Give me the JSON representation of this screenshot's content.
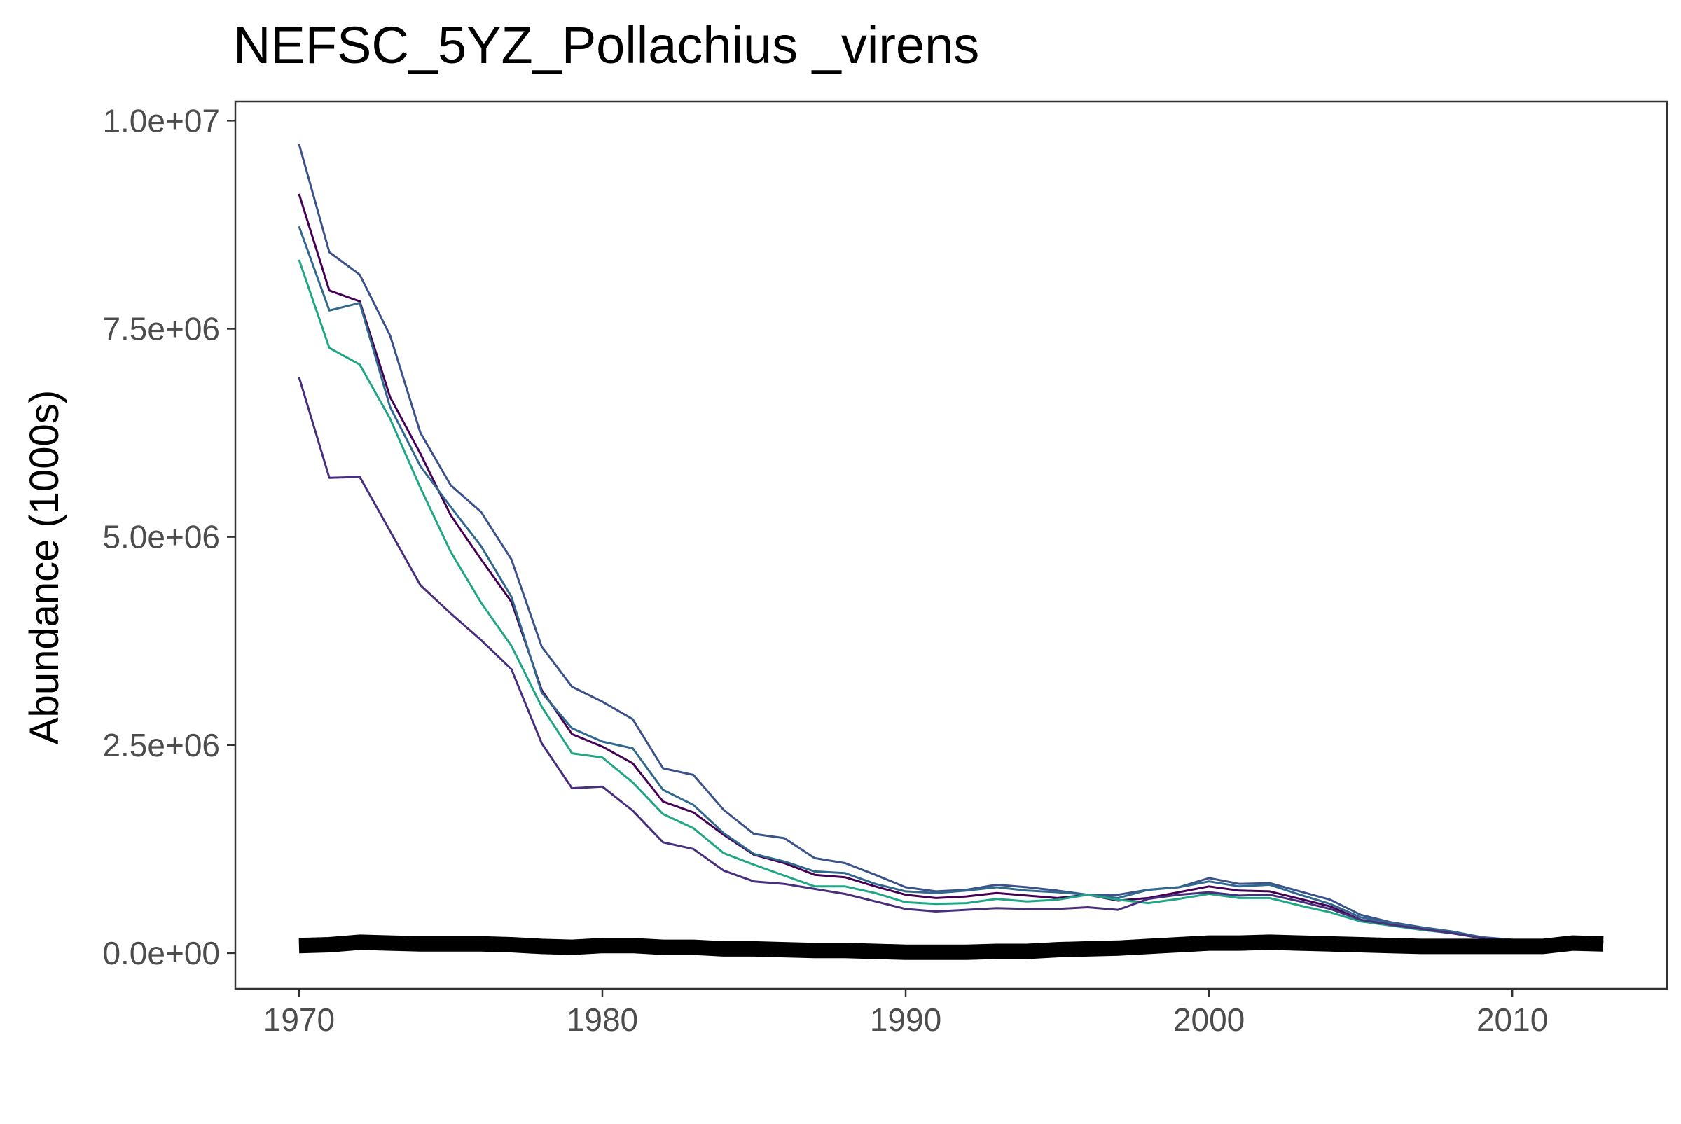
{
  "chart_data": {
    "type": "line",
    "title": "NEFSC_5YZ_Pollachius _virens",
    "xlabel": "",
    "ylabel": "Abundance (1000s)",
    "xlim": [
      1967.9,
      2015.1
    ],
    "ylim": [
      -430000,
      10230000
    ],
    "x_ticks": [
      1970,
      1980,
      1990,
      2000,
      2010
    ],
    "x_tick_labels": [
      "1970",
      "1980",
      "1990",
      "2000",
      "2010"
    ],
    "y_ticks": [
      0,
      2500000,
      5000000,
      7500000,
      10000000
    ],
    "y_tick_labels": [
      "0.0e+00",
      "2.5e+06",
      "5.0e+06",
      "7.5e+06",
      "1.0e+07"
    ],
    "grid": false,
    "legend": "none",
    "x": [
      1970,
      1971,
      1972,
      1973,
      1974,
      1975,
      1976,
      1977,
      1978,
      1979,
      1980,
      1981,
      1982,
      1983,
      1984,
      1985,
      1986,
      1987,
      1988,
      1989,
      1990,
      1991,
      1992,
      1993,
      1994,
      1995,
      1996,
      1997,
      1998,
      1999,
      2000,
      2001,
      2002,
      2003,
      2004,
      2005,
      2006,
      2007,
      2008,
      2009,
      2010,
      2011,
      2012,
      2013
    ],
    "series": [
      {
        "color": "#3b528b",
        "width": 3,
        "values": [
          9720000,
          8420000,
          8150000,
          7420000,
          6250000,
          5620000,
          5300000,
          4730000,
          3680000,
          3200000,
          3020000,
          2810000,
          2220000,
          2140000,
          1720000,
          1430000,
          1380000,
          1140000,
          1080000,
          940000,
          790000,
          740000,
          760000,
          820000,
          790000,
          750000,
          700000,
          700000,
          760000,
          790000,
          900000,
          830000,
          840000,
          740000,
          640000,
          460000,
          370000,
          310000,
          260000,
          190000,
          160000,
          130000,
          150000,
          140000
        ]
      },
      {
        "color": "#440154",
        "width": 3,
        "values": [
          9120000,
          7960000,
          7830000,
          6680000,
          6000000,
          5260000,
          4730000,
          4220000,
          3160000,
          2630000,
          2480000,
          2280000,
          1820000,
          1690000,
          1420000,
          1180000,
          1080000,
          940000,
          910000,
          800000,
          700000,
          660000,
          680000,
          720000,
          690000,
          660000,
          700000,
          630000,
          660000,
          730000,
          800000,
          750000,
          740000,
          650000,
          560000,
          400000,
          340000,
          280000,
          240000,
          180000,
          150000,
          130000,
          150000,
          130000
        ]
      },
      {
        "color": "#31688e",
        "width": 3,
        "values": [
          8730000,
          7720000,
          7810000,
          6560000,
          5850000,
          5360000,
          4890000,
          4280000,
          3130000,
          2700000,
          2540000,
          2460000,
          1960000,
          1780000,
          1440000,
          1190000,
          1100000,
          980000,
          960000,
          830000,
          740000,
          720000,
          750000,
          790000,
          750000,
          730000,
          700000,
          660000,
          760000,
          790000,
          860000,
          800000,
          820000,
          700000,
          590000,
          430000,
          360000,
          300000,
          260000,
          190000,
          150000,
          130000,
          150000,
          140000
        ]
      },
      {
        "color": "#21a685",
        "width": 3,
        "values": [
          8330000,
          7270000,
          7070000,
          6420000,
          5590000,
          4820000,
          4210000,
          3690000,
          2960000,
          2400000,
          2350000,
          2050000,
          1670000,
          1500000,
          1200000,
          1060000,
          930000,
          800000,
          800000,
          720000,
          610000,
          590000,
          600000,
          650000,
          620000,
          640000,
          700000,
          640000,
          600000,
          650000,
          710000,
          660000,
          660000,
          570000,
          490000,
          380000,
          330000,
          280000,
          240000,
          180000,
          150000,
          130000,
          150000,
          130000
        ]
      },
      {
        "color": "#472f7d",
        "width": 3,
        "values": [
          6920000,
          5710000,
          5720000,
          5070000,
          4420000,
          4080000,
          3760000,
          3410000,
          2520000,
          1980000,
          2000000,
          1710000,
          1330000,
          1250000,
          990000,
          860000,
          830000,
          770000,
          710000,
          620000,
          530000,
          500000,
          520000,
          540000,
          530000,
          530000,
          550000,
          520000,
          650000,
          700000,
          730000,
          690000,
          700000,
          620000,
          530000,
          400000,
          340000,
          290000,
          240000,
          180000,
          150000,
          130000,
          150000,
          130000
        ]
      },
      {
        "color": "#000000",
        "width": 22,
        "values": [
          90000,
          100000,
          130000,
          120000,
          110000,
          110000,
          110000,
          100000,
          80000,
          70000,
          90000,
          90000,
          70000,
          70000,
          50000,
          50000,
          40000,
          30000,
          30000,
          20000,
          10000,
          10000,
          10000,
          20000,
          20000,
          40000,
          50000,
          60000,
          80000,
          100000,
          120000,
          120000,
          130000,
          120000,
          110000,
          100000,
          90000,
          80000,
          80000,
          80000,
          80000,
          80000,
          120000,
          110000
        ]
      }
    ]
  }
}
